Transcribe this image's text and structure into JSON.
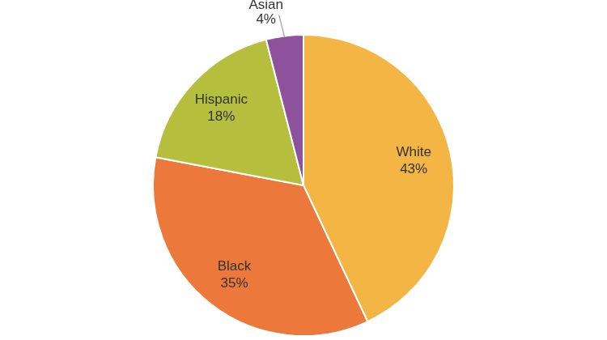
{
  "chart_data": {
    "type": "pie",
    "categories": [
      "White",
      "Black",
      "Hispanic",
      "Asian"
    ],
    "values": [
      43,
      35,
      18,
      4
    ],
    "value_labels": [
      "43%",
      "35%",
      "18%",
      "4%"
    ],
    "colors": [
      "#f3b543",
      "#ec783b",
      "#b5be3d",
      "#8d529b"
    ],
    "data_labels": true
  }
}
